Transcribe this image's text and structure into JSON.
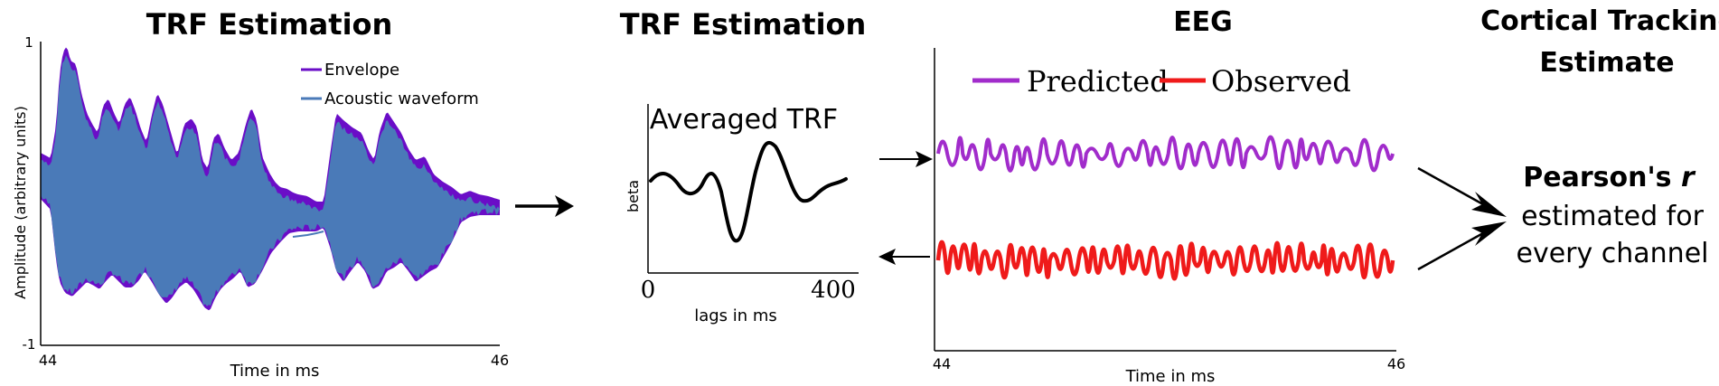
{
  "panel1": {
    "title": "TRF Estimation",
    "ylabel": "Amplitude (arbitrary units)",
    "xlabel": "Time in ms",
    "y_top": "1",
    "y_bottom": "-1",
    "x_left": "44",
    "x_right": "46",
    "legend": {
      "envelope": "Envelope",
      "waveform": "Acoustic waveform"
    }
  },
  "panel2": {
    "title": "TRF Estimation",
    "inner_title": "Averaged TRF",
    "ylabel": "beta",
    "xlabel": "lags in ms",
    "x_left": "0",
    "x_right": "400"
  },
  "panel3": {
    "title": "EEG",
    "legend": {
      "predicted": "Predicted",
      "observed": "Observed"
    },
    "xlabel": "Time in ms",
    "x_left": "44",
    "x_right": "46"
  },
  "panel4": {
    "title_line1": "Cortical Tracking",
    "title_line2": "Estimate",
    "pearson_prefix": "Pearson's ",
    "pearson_var": "r",
    "line2": "estimated for",
    "line3": "every channel"
  },
  "colors": {
    "envelope": "#6a0dc7",
    "waveform": "#4a7ab8",
    "predicted": "#a12ccb",
    "observed": "#ef1a1a",
    "trf": "#000000"
  }
}
